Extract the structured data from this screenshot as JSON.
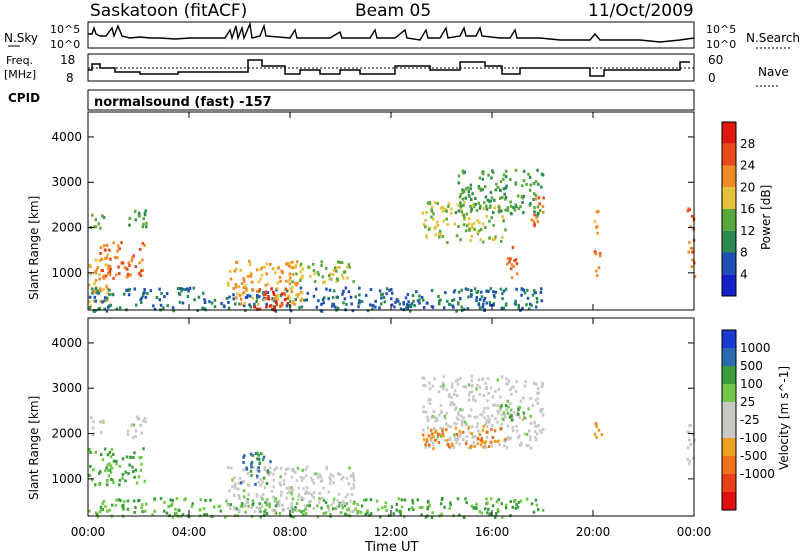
{
  "header": {
    "title": "Saskatoon (fitACF)",
    "beam": "Beam 05",
    "date": "11/Oct/2009"
  },
  "summary_panels": {
    "nsky_label": "N.Sky",
    "nsky_ticks": [
      "10^5",
      "10^0"
    ],
    "nsearch_label": "N.Search",
    "nsearch_ticks": [
      "10^5",
      "10^0"
    ],
    "freq_label_1": "Freq.",
    "freq_label_2": "[MHz]",
    "freq_ticks": [
      "18",
      "8"
    ],
    "nave_label": "Nave",
    "nave_ticks": [
      "60",
      "0"
    ],
    "cpid_label": "CPID",
    "cpid_text": "normalsound (fast) -157"
  },
  "colors": {
    "power_scale": [
      "#1420c8",
      "#1c50b4",
      "#2a8a50",
      "#5aa83c",
      "#e6c23c",
      "#f08c28",
      "#e84a1c",
      "#e01810"
    ],
    "velocity_scale": [
      "#1a3ad2",
      "#2a6ab0",
      "#3c9c3c",
      "#70c848",
      "#c8c8c4",
      "#c8c8c4",
      "#f0a020",
      "#f07020",
      "#e84018",
      "#e01010"
    ]
  },
  "chart_data": [
    {
      "type": "heatmap",
      "title": "",
      "xlabel": "Time UT",
      "ylabel": "Slant Range [km]",
      "x_ticks": [
        "00:00",
        "04:00",
        "08:00",
        "12:00",
        "16:00",
        "20:00",
        "00:00"
      ],
      "xlim_hours": [
        0,
        24
      ],
      "y_ticks": [
        1000,
        2000,
        3000,
        4000
      ],
      "ylim": [
        180,
        4550
      ],
      "colorbar_label": "Power [dB]",
      "colorbar_ticks": [
        4,
        8,
        12,
        16,
        20,
        24,
        28
      ],
      "colorbar_range": [
        0,
        32
      ],
      "regions": [
        {
          "t0": 0.0,
          "t1": 0.8,
          "r0": 300,
          "r1": 1500,
          "value": 20
        },
        {
          "t0": 0.4,
          "t1": 2.2,
          "r0": 900,
          "r1": 1700,
          "value": 24
        },
        {
          "t0": 0.0,
          "t1": 0.6,
          "r0": 2000,
          "r1": 2400,
          "value": 12
        },
        {
          "t0": 1.5,
          "t1": 2.3,
          "r0": 1900,
          "r1": 2400,
          "value": 12
        },
        {
          "t0": 0.0,
          "t1": 18.0,
          "r0": 180,
          "r1": 700,
          "value": 8
        },
        {
          "t0": 5.5,
          "t1": 8.5,
          "r0": 300,
          "r1": 1300,
          "value": 20
        },
        {
          "t0": 6.5,
          "t1": 8.0,
          "r0": 200,
          "r1": 700,
          "value": 28
        },
        {
          "t0": 8.0,
          "t1": 10.5,
          "r0": 800,
          "r1": 1300,
          "value": 16
        },
        {
          "t0": 13.2,
          "t1": 16.5,
          "r0": 1700,
          "r1": 2600,
          "value": 16
        },
        {
          "t0": 14.5,
          "t1": 18.0,
          "r0": 2300,
          "r1": 3300,
          "value": 12
        },
        {
          "t0": 16.5,
          "t1": 17.0,
          "r0": 900,
          "r1": 1600,
          "value": 24
        },
        {
          "t0": 17.5,
          "t1": 18.0,
          "r0": 2000,
          "r1": 2700,
          "value": 24
        },
        {
          "t0": 20.0,
          "t1": 20.3,
          "r0": 900,
          "r1": 1600,
          "value": 24
        },
        {
          "t0": 20.0,
          "t1": 20.3,
          "r0": 1900,
          "r1": 2400,
          "value": 20
        },
        {
          "t0": 23.7,
          "t1": 24.0,
          "r0": 900,
          "r1": 2500,
          "value": 24
        }
      ]
    },
    {
      "type": "heatmap",
      "title": "",
      "xlabel": "Time UT",
      "ylabel": "Slant Range [km]",
      "x_ticks": [
        "00:00",
        "04:00",
        "08:00",
        "12:00",
        "16:00",
        "20:00",
        "00:00"
      ],
      "xlim_hours": [
        0,
        24
      ],
      "y_ticks": [
        1000,
        2000,
        3000,
        4000
      ],
      "ylim": [
        180,
        4550
      ],
      "colorbar_label": "Velocity [m s^-1]",
      "colorbar_ticks": [
        "1000",
        "500",
        "100",
        "25",
        "-25",
        "-100",
        "-500",
        "-1000"
      ],
      "regions": [
        {
          "t0": 0.0,
          "t1": 18.0,
          "r0": 180,
          "r1": 600,
          "value": 100
        },
        {
          "t0": 0.0,
          "t1": 2.2,
          "r0": 900,
          "r1": 1700,
          "value": 100
        },
        {
          "t0": 0.0,
          "t1": 0.6,
          "r0": 2000,
          "r1": 2400,
          "value": 0
        },
        {
          "t0": 1.5,
          "t1": 2.3,
          "r0": 1900,
          "r1": 2400,
          "value": 0
        },
        {
          "t0": 5.5,
          "t1": 10.5,
          "r0": 300,
          "r1": 1300,
          "value": 0
        },
        {
          "t0": 6.0,
          "t1": 7.2,
          "r0": 900,
          "r1": 1600,
          "value": 500
        },
        {
          "t0": 13.2,
          "t1": 18.0,
          "r0": 1700,
          "r1": 3300,
          "value": 0
        },
        {
          "t0": 13.2,
          "t1": 16.5,
          "r0": 1700,
          "r1": 2200,
          "value": -500
        },
        {
          "t0": 16.3,
          "t1": 17.5,
          "r0": 2300,
          "r1": 2700,
          "value": 100
        },
        {
          "t0": 20.0,
          "t1": 20.3,
          "r0": 1900,
          "r1": 2400,
          "value": -500
        },
        {
          "t0": 23.7,
          "t1": 24.0,
          "r0": 1200,
          "r1": 2300,
          "value": 0
        }
      ]
    }
  ]
}
